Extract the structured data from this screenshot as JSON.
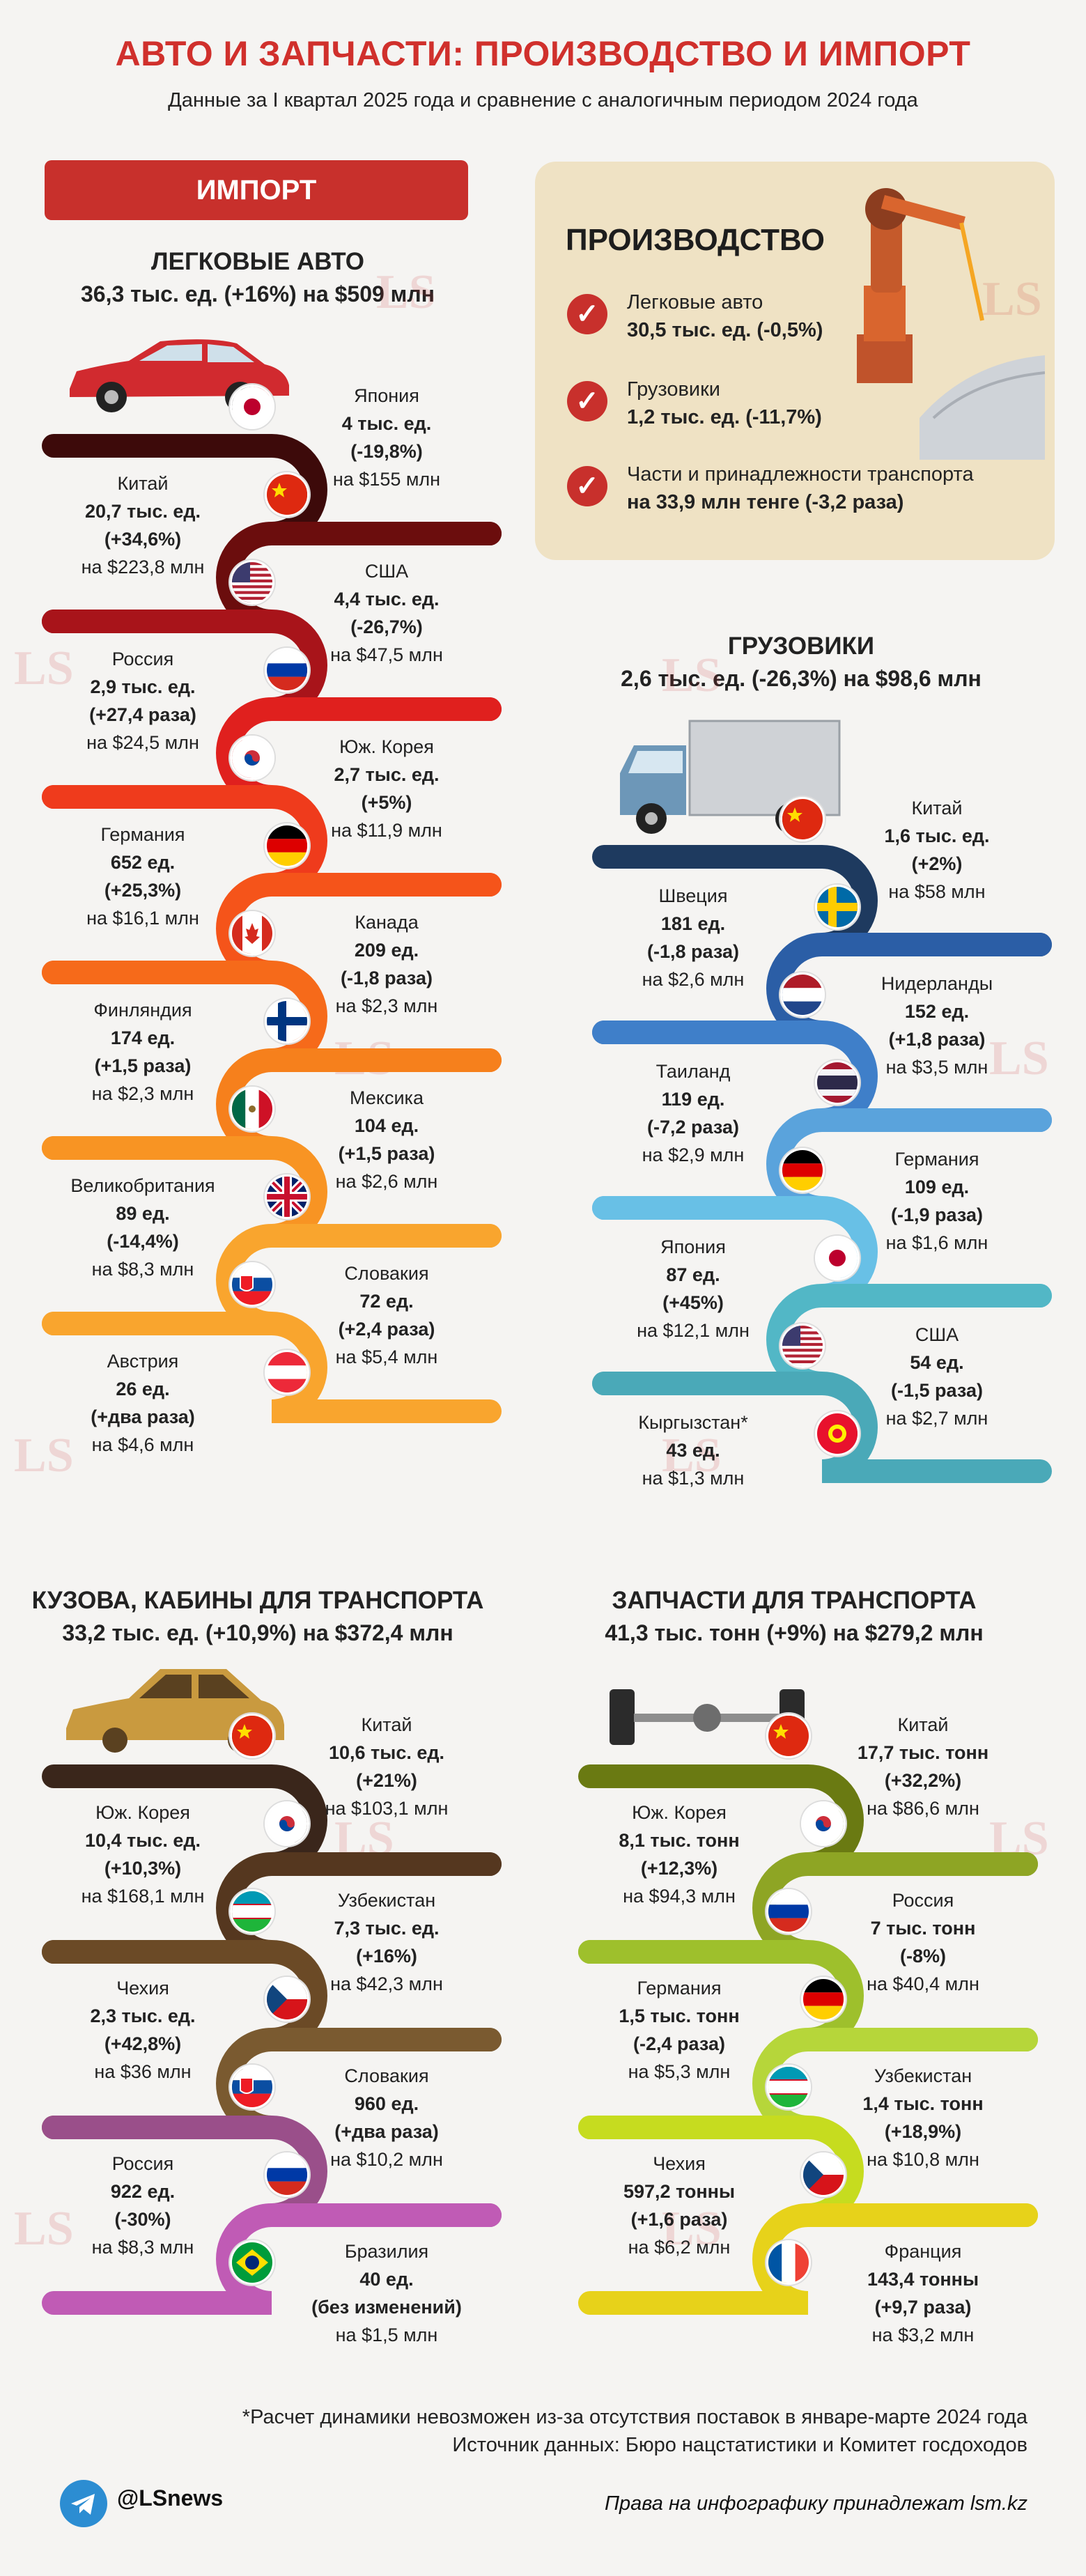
{
  "header": {
    "title": "АВТО И ЗАПЧАСТИ: ПРОИЗВОДСТВО И ИМПОРТ",
    "subtitle": "Данные за I квартал 2025 года и сравнение с аналогичным периодом 2024 года"
  },
  "import_badge": "ИМПОРТ",
  "production": {
    "title": "ПРОИЗВОДСТВО",
    "items": [
      {
        "label": "Легковые авто",
        "value": "30,5 тыс. ед. (-0,5%)"
      },
      {
        "label": "Грузовики",
        "value": "1,2 тыс. ед. (-11,7%)"
      },
      {
        "label": "Части и принадлежности транспорта",
        "value": "на 33,9 млн тенге (-3,2 раза)"
      }
    ]
  },
  "cars": {
    "title": "ЛЕГКОВЫЕ АВТО",
    "summary": "36,3 тыс. ед. (+16%) на $509 млн",
    "items": [
      {
        "country": "Япония",
        "qty": "4 тыс. ед.",
        "delta": "(-19,8%)",
        "value": "на $155 млн",
        "flag": "japan",
        "side": "right"
      },
      {
        "country": "Китай",
        "qty": "20,7 тыс. ед.",
        "delta": "(+34,6%)",
        "value": "на $223,8 млн",
        "flag": "china",
        "side": "left"
      },
      {
        "country": "США",
        "qty": "4,4 тыс. ед.",
        "delta": "(-26,7%)",
        "value": "на $47,5 млн",
        "flag": "usa",
        "side": "right"
      },
      {
        "country": "Россия",
        "qty": "2,9 тыс. ед.",
        "delta": "(+27,4 раза)",
        "value": "на $24,5 млн",
        "flag": "russia",
        "side": "left"
      },
      {
        "country": "Юж. Корея",
        "qty": "2,7 тыс. ед.",
        "delta": "(+5%)",
        "value": "на $11,9 млн",
        "flag": "korea",
        "side": "right"
      },
      {
        "country": "Германия",
        "qty": "652 ед.",
        "delta": "(+25,3%)",
        "value": "на $16,1 млн",
        "flag": "germany",
        "side": "left"
      },
      {
        "country": "Канада",
        "qty": "209 ед.",
        "delta": "(-1,8 раза)",
        "value": "на $2,3 млн",
        "flag": "canada",
        "side": "right"
      },
      {
        "country": "Финляндия",
        "qty": "174 ед.",
        "delta": "(+1,5 раза)",
        "value": "на $2,3 млн",
        "flag": "finland",
        "side": "left"
      },
      {
        "country": "Мексика",
        "qty": "104 ед.",
        "delta": "(+1,5 раза)",
        "value": "на $2,6 млн",
        "flag": "mexico",
        "side": "right"
      },
      {
        "country": "Великобритания",
        "qty": "89 ед.",
        "delta": "(-14,4%)",
        "value": "на $8,3 млн",
        "flag": "uk",
        "side": "left"
      },
      {
        "country": "Словакия",
        "qty": "72 ед.",
        "delta": "(+2,4 раза)",
        "value": "на $5,4 млн",
        "flag": "slovakia",
        "side": "right"
      },
      {
        "country": "Австрия",
        "qty": "26 ед.",
        "delta": "(+два раза)",
        "value": "на $4,6 млн",
        "flag": "austria",
        "side": "left"
      }
    ]
  },
  "trucks": {
    "title": "ГРУЗОВИКИ",
    "summary": "2,6 тыс. ед. (-26,3%) на $98,6 млн",
    "items": [
      {
        "country": "Китай",
        "qty": "1,6 тыс. ед.",
        "delta": "(+2%)",
        "value": "на $58 млн",
        "flag": "china",
        "side": "right"
      },
      {
        "country": "Швеция",
        "qty": "181 ед.",
        "delta": "(-1,8 раза)",
        "value": "на $2,6 млн",
        "flag": "sweden",
        "side": "left"
      },
      {
        "country": "Нидерланды",
        "qty": "152 ед.",
        "delta": "(+1,8 раза)",
        "value": "на $3,5 млн",
        "flag": "netherlands",
        "side": "right"
      },
      {
        "country": "Таиланд",
        "qty": "119 ед.",
        "delta": "(-7,2 раза)",
        "value": "на $2,9 млн",
        "flag": "thailand",
        "side": "left"
      },
      {
        "country": "Германия",
        "qty": "109 ед.",
        "delta": "(-1,9 раза)",
        "value": "на $1,6 млн",
        "flag": "germany",
        "side": "right"
      },
      {
        "country": "Япония",
        "qty": "87 ед.",
        "delta": "(+45%)",
        "value": "на $12,1 млн",
        "flag": "japan",
        "side": "left"
      },
      {
        "country": "США",
        "qty": "54 ед.",
        "delta": "(-1,5 раза)",
        "value": "на $2,7 млн",
        "flag": "usa",
        "side": "right"
      },
      {
        "country": "Кыргызстан*",
        "qty": "43 ед.",
        "delta": "",
        "value": "на $1,3 млн",
        "flag": "kyrgyzstan",
        "side": "left"
      }
    ]
  },
  "bodies": {
    "title": "КУЗОВА, КАБИНЫ ДЛЯ ТРАНСПОРТА",
    "summary": "33,2 тыс. ед. (+10,9%) на $372,4 млн",
    "items": [
      {
        "country": "Китай",
        "qty": "10,6 тыс. ед.",
        "delta": "(+21%)",
        "value": "на $103,1 млн",
        "flag": "china",
        "side": "right"
      },
      {
        "country": "Юж. Корея",
        "qty": "10,4 тыс. ед.",
        "delta": "(+10,3%)",
        "value": "на $168,1 млн",
        "flag": "korea",
        "side": "left"
      },
      {
        "country": "Узбекистан",
        "qty": "7,3 тыс. ед.",
        "delta": "(+16%)",
        "value": "на $42,3 млн",
        "flag": "uzbekistan",
        "side": "right"
      },
      {
        "country": "Чехия",
        "qty": "2,3 тыс. ед.",
        "delta": "(+42,8%)",
        "value": "на $36 млн",
        "flag": "czech",
        "side": "left"
      },
      {
        "country": "Словакия",
        "qty": "960 ед.",
        "delta": "(+два раза)",
        "value": "на $10,2 млн",
        "flag": "slovakia",
        "side": "right"
      },
      {
        "country": "Россия",
        "qty": "922 ед.",
        "delta": "(-30%)",
        "value": "на $8,3 млн",
        "flag": "russia",
        "side": "left"
      },
      {
        "country": "Бразилия",
        "qty": "40 ед.",
        "delta": "(без изменений)",
        "value": "на $1,5 млн",
        "flag": "brazil",
        "side": "right"
      }
    ]
  },
  "parts": {
    "title": "ЗАПЧАСТИ ДЛЯ ТРАНСПОРТА",
    "summary": "41,3 тыс. тонн (+9%) на $279,2 млн",
    "items": [
      {
        "country": "Китай",
        "qty": "17,7 тыс. тонн",
        "delta": "(+32,2%)",
        "value": "на $86,6 млн",
        "flag": "china",
        "side": "right"
      },
      {
        "country": "Юж. Корея",
        "qty": "8,1 тыс. тонн",
        "delta": "(+12,3%)",
        "value": "на $94,3 млн",
        "flag": "korea",
        "side": "left"
      },
      {
        "country": "Россия",
        "qty": "7 тыс. тонн",
        "delta": "(-8%)",
        "value": "на $40,4 млн",
        "flag": "russia",
        "side": "right"
      },
      {
        "country": "Германия",
        "qty": "1,5 тыс. тонн",
        "delta": "(-2,4 раза)",
        "value": "на $5,3 млн",
        "flag": "germany",
        "side": "left"
      },
      {
        "country": "Узбекистан",
        "qty": "1,4 тыс. тонн",
        "delta": "(+18,9%)",
        "value": "на $10,8 млн",
        "flag": "uzbekistan",
        "side": "right"
      },
      {
        "country": "Чехия",
        "qty": "597,2 тонны",
        "delta": "(+1,6 раза)",
        "value": "на $6,2 млн",
        "flag": "czech",
        "side": "left"
      },
      {
        "country": "Франция",
        "qty": "143,4 тонны",
        "delta": "(+9,7 раза)",
        "value": "на $3,2 млн",
        "flag": "france",
        "side": "right"
      }
    ]
  },
  "footnotes": {
    "note1": "*Расчет динамики невозможен из-за отсутствия поставок в январе-марте 2024 года",
    "note2": "Источник данных: Бюро нацстатистики и Комитет госдоходов",
    "channel": "@LSnews",
    "rights": "Права на инфографику принадлежат lsm.kz"
  },
  "watermark": "LS",
  "palettes": {
    "cars": [
      "#3d0a0a",
      "#6b0d0d",
      "#a8141a",
      "#e0201e",
      "#ef3b1c",
      "#f5541a",
      "#f66a1a",
      "#f6801c",
      "#f89423",
      "#f9a52e"
    ],
    "trucks": [
      "#1e3a5f",
      "#2b5ea6",
      "#3f7fc9",
      "#5aa3dc",
      "#68c0e6",
      "#52b7c6",
      "#4aa9b8"
    ],
    "bodies": [
      "#3a261b",
      "#55371f",
      "#6b4a26",
      "#7a5a30",
      "#9a4f8a",
      "#c05bb5"
    ],
    "parts": [
      "#6a7a12",
      "#8ea524",
      "#9ec02c",
      "#b6d63a",
      "#c6dc1f",
      "#e7d21a",
      "#f2c41d"
    ]
  }
}
